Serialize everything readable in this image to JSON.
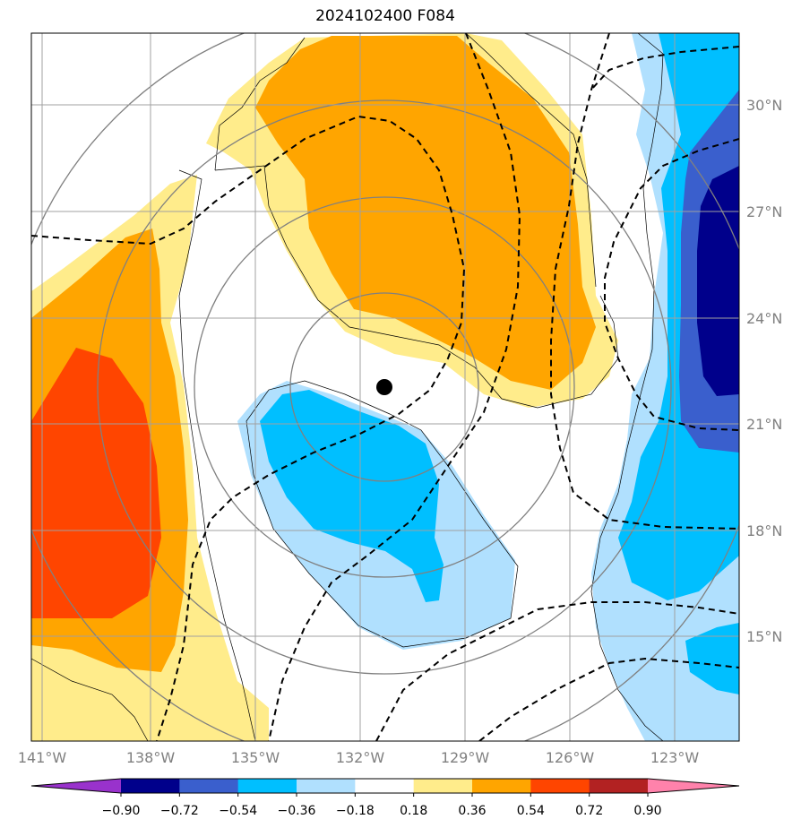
{
  "title": "2024102400 F084",
  "map": {
    "lon_range": [
      -141,
      -121.5
    ],
    "lat_range": [
      12.5,
      32.5
    ],
    "lat_ticks": [
      "30°N",
      "27°N",
      "24°N",
      "21°N",
      "18°N",
      "15°N"
    ],
    "lon_ticks": [
      "141°W",
      "138°W",
      "135°W",
      "132°W",
      "129°W",
      "126°W",
      "123°W"
    ],
    "storm_center": {
      "lon": -131.4,
      "lat": 22.0,
      "marker": "black-dot"
    },
    "grid": true,
    "features": [
      "filled-anomaly-field",
      "gray-range-rings",
      "black-dashed-contours",
      "thin-black-outline-contours"
    ]
  },
  "colorbar": {
    "orientation": "horizontal",
    "extend": "both",
    "tick_labels": [
      "−0.90",
      "−0.72",
      "−0.54",
      "−0.36",
      "−0.18",
      "0.18",
      "0.36",
      "0.54",
      "0.72",
      "0.90"
    ],
    "colors": [
      "#9932cc",
      "#00008b",
      "#3a5fcd",
      "#00bfff",
      "#b0e0fe",
      "#ffffff",
      "#ffec8b",
      "#ffa500",
      "#ff4500",
      "#b22222",
      "#ff82ab"
    ]
  }
}
